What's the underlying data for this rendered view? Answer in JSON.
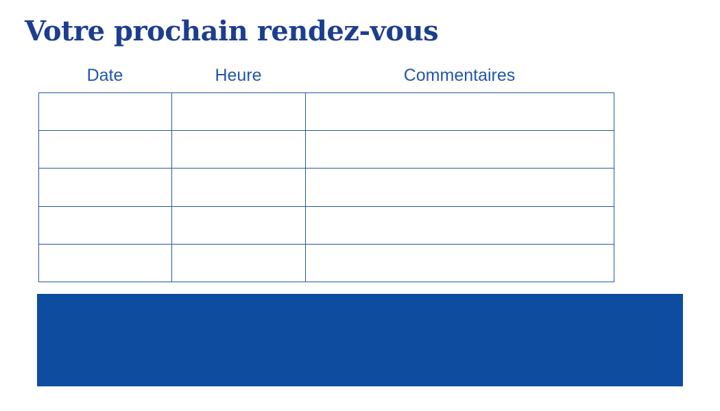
{
  "page": {
    "title": "Votre prochain rendez-vous",
    "background_color": "#ffffff"
  },
  "table": {
    "columns": [
      {
        "label": "Date"
      },
      {
        "label": "Heure"
      },
      {
        "label": "Commentaires"
      }
    ],
    "rows": [
      {
        "cells": [
          "",
          "",
          ""
        ]
      },
      {
        "cells": [
          "",
          "",
          ""
        ]
      },
      {
        "cells": [
          "",
          "",
          ""
        ]
      },
      {
        "cells": [
          "",
          "",
          ""
        ]
      },
      {
        "cells": [
          "",
          "",
          ""
        ]
      }
    ],
    "border_color": "#2156a7"
  },
  "banner": {
    "text": "",
    "color": "#0d4c9e"
  },
  "colors": {
    "title_text": "#1c3e8f",
    "header_text": "#2156a7",
    "banner_fill": "#0d4c9e",
    "table_border": "#2156a7"
  }
}
